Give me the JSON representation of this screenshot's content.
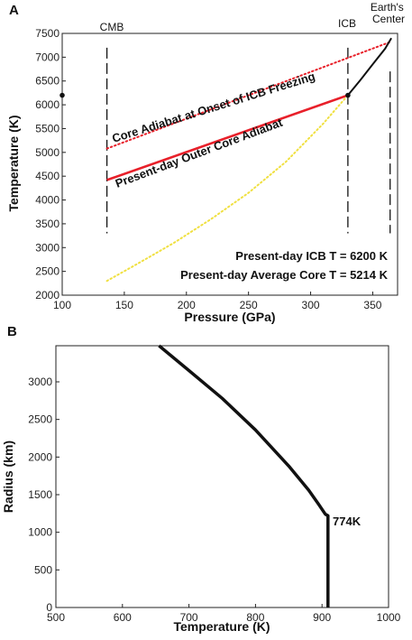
{
  "panels": {
    "a_label": "A",
    "b_label": "B"
  },
  "chart_data": [
    {
      "type": "line",
      "xlabel": "Pressure (GPa)",
      "ylabel": "Temperature (K)",
      "xlim": [
        100,
        370
      ],
      "ylim": [
        2000,
        7500
      ],
      "xticks": [
        100,
        150,
        200,
        250,
        300,
        350
      ],
      "yticks": [
        2000,
        2500,
        3000,
        3500,
        4000,
        4500,
        5000,
        5500,
        6000,
        6500,
        7000,
        7500
      ],
      "grid": false,
      "series": [
        {
          "name": "Core Adiabat at Onset of ICB Freezing",
          "style": "dotted",
          "color": "#e8202a",
          "x": [
            136,
            365
          ],
          "y": [
            5080,
            7330
          ]
        },
        {
          "name": "Present-day Outer Core Adiabat",
          "style": "solid",
          "color": "#e8202a",
          "x": [
            136,
            330
          ],
          "y": [
            4420,
            6200
          ]
        },
        {
          "style": "dotted",
          "color": "#f0e040",
          "x": [
            136,
            160,
            190,
            220,
            250,
            280,
            310,
            330
          ],
          "y": [
            2300,
            2650,
            3100,
            3600,
            4150,
            4800,
            5600,
            6200
          ]
        },
        {
          "style": "solid",
          "color": "#111111",
          "x": [
            330,
            340,
            350,
            360,
            365
          ],
          "y": [
            6200,
            6520,
            6850,
            7180,
            7400
          ]
        }
      ],
      "vlines": [
        {
          "label": "CMB",
          "x": 136,
          "y": [
            3300,
            7200
          ]
        },
        {
          "label": "ICB",
          "x": 330,
          "y": [
            3300,
            7200
          ]
        },
        {
          "label": "Earth's Center",
          "x": 364,
          "y": [
            3300,
            6700
          ]
        }
      ],
      "points": [
        {
          "x": 100,
          "y": 6200
        },
        {
          "x": 330,
          "y": 6200
        }
      ],
      "annotations": [
        "Present-day ICB T = 6200 K",
        "Present-day Average Core T = 5214 K"
      ]
    },
    {
      "type": "line",
      "xlabel": "Temperature (K)",
      "ylabel": "Radius (km)",
      "xlim": [
        500,
        1000
      ],
      "ylim": [
        0,
        3480
      ],
      "xticks": [
        500,
        600,
        700,
        800,
        900,
        1000
      ],
      "yticks": [
        0,
        500,
        1000,
        1500,
        2000,
        2500,
        3000
      ],
      "grid": false,
      "series": [
        {
          "style": "solid",
          "color": "#111111",
          "x": [
            655,
            700,
            750,
            800,
            850,
            880,
            895,
            905,
            909,
            909
          ],
          "y": [
            3480,
            3150,
            2780,
            2360,
            1880,
            1560,
            1370,
            1240,
            1220,
            0
          ]
        }
      ],
      "annotations": [
        "774K"
      ]
    }
  ]
}
